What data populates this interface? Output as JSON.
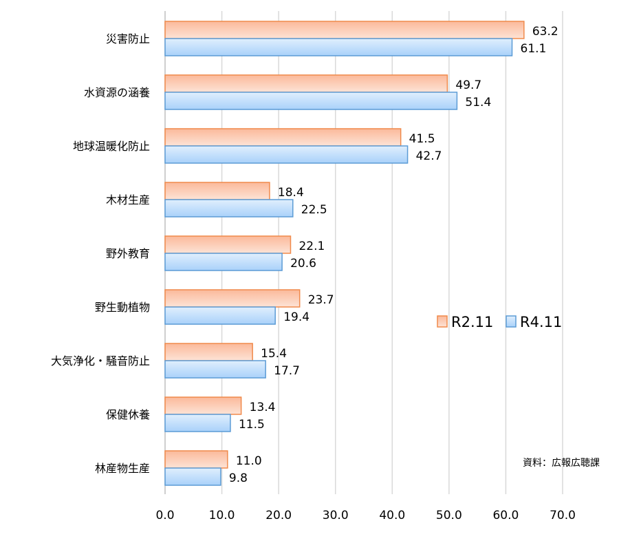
{
  "chart_data": {
    "type": "bar",
    "orientation": "horizontal",
    "categories": [
      "災害防止",
      "水資源の涵養",
      "地球温暖化防止",
      "木材生産",
      "野外教育",
      "野生動植物",
      "大気浄化・騒音防止",
      "保健休養",
      "林産物生産"
    ],
    "series": [
      {
        "name": "R2.11",
        "color": "#f08a4b",
        "fill": "#fbc9b0",
        "values": [
          63.2,
          49.7,
          41.5,
          18.4,
          22.1,
          23.7,
          15.4,
          13.4,
          11.0
        ]
      },
      {
        "name": "R4.11",
        "color": "#5b9bd5",
        "fill": "#bcdcfb",
        "values": [
          61.1,
          51.4,
          42.7,
          22.5,
          20.6,
          19.4,
          17.7,
          11.5,
          9.8
        ]
      }
    ],
    "xlim": [
      0,
      70
    ],
    "xticks": [
      "0.0",
      "10.0",
      "20.0",
      "30.0",
      "40.0",
      "50.0",
      "60.0",
      "70.0"
    ],
    "grid": true,
    "legend_position": "right-middle",
    "annotation": "資料：広報広聴課"
  }
}
